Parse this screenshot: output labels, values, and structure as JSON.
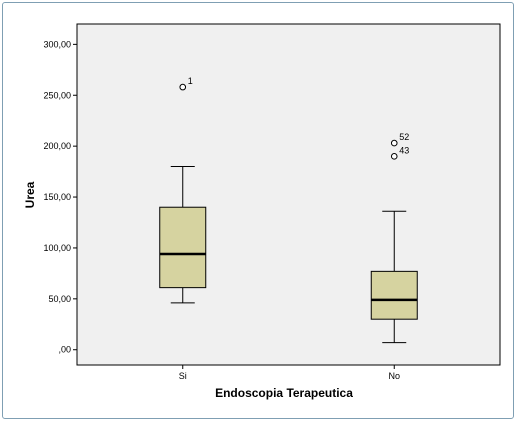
{
  "chart_data": {
    "type": "boxplot",
    "xlabel": "Endoscopia Terapeutica",
    "ylabel": "Urea",
    "ylim": [
      -15,
      320
    ],
    "y_ticks": [
      {
        "value": 0,
        "label": ",00"
      },
      {
        "value": 50,
        "label": "50,00"
      },
      {
        "value": 100,
        "label": "100,00"
      },
      {
        "value": 150,
        "label": "150,00"
      },
      {
        "value": 200,
        "label": "200,00"
      },
      {
        "value": 250,
        "label": "250,00"
      },
      {
        "value": 300,
        "label": "300,00"
      }
    ],
    "grid": false,
    "colors": {
      "plot_background": "#f0f0f0",
      "box_fill": "#d6d3a0",
      "stroke": "#000000"
    },
    "categories": [
      "Si",
      "No"
    ],
    "boxes": [
      {
        "category": "Si",
        "whisker_low": 46,
        "q1": 61,
        "median": 94,
        "q3": 140,
        "whisker_high": 180,
        "outliers": [
          {
            "value": 258,
            "label": "1"
          }
        ]
      },
      {
        "category": "No",
        "whisker_low": 7,
        "q1": 30,
        "median": 49,
        "q3": 77,
        "whisker_high": 136,
        "outliers": [
          {
            "value": 203,
            "label": "52"
          },
          {
            "value": 190,
            "label": "43"
          }
        ]
      }
    ]
  }
}
